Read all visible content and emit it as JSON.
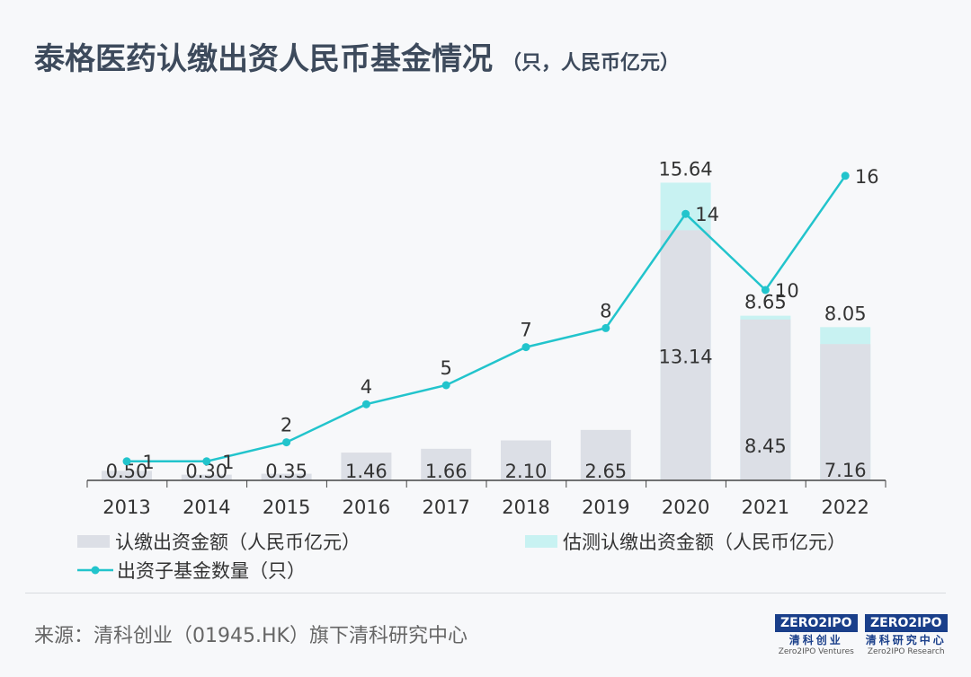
{
  "title": "泰格医药认缴出资人民币基金情况",
  "title_unit": "（只，人民币亿元）",
  "source": "来源：清科创业（01945.HK）旗下清科研究中心",
  "logos": [
    {
      "mark": "ZERO2IPO",
      "cn": "清科创业",
      "en": "Zero2IPO Ventures"
    },
    {
      "mark": "ZERO2IPO",
      "cn": "清科研究中心",
      "en": "Zero2IPO Research"
    }
  ],
  "colors": {
    "bar": "#dcdfe6",
    "estimate": "#c8f2f2",
    "line": "#22c4cc"
  },
  "chart_data": {
    "type": "bar",
    "categories": [
      "2013",
      "2014",
      "2015",
      "2016",
      "2017",
      "2018",
      "2019",
      "2020",
      "2021",
      "2022"
    ],
    "ylim": [
      0,
      16.5
    ],
    "series": [
      {
        "name": "认缴出资金额（人民币亿元）",
        "type": "bar",
        "values": [
          0.5,
          0.3,
          0.35,
          1.46,
          1.66,
          2.1,
          2.65,
          13.14,
          8.45,
          7.16
        ],
        "labels": [
          "0.50",
          "0.30",
          "0.35",
          "1.46",
          "1.66",
          "2.10",
          "2.65",
          "13.14",
          "8.45",
          "7.16"
        ]
      },
      {
        "name": "估测认缴出资金额（人民币亿元）",
        "type": "bar-total",
        "values": [
          null,
          null,
          null,
          null,
          null,
          null,
          null,
          15.64,
          8.65,
          8.05
        ],
        "labels": [
          "",
          "",
          "",
          "",
          "",
          "",
          "",
          "15.64",
          "8.65",
          "8.05"
        ]
      },
      {
        "name": "出资子基金数量（只）",
        "type": "line",
        "values": [
          1,
          1,
          2,
          4,
          5,
          7,
          8,
          14,
          10,
          16
        ]
      }
    ]
  }
}
